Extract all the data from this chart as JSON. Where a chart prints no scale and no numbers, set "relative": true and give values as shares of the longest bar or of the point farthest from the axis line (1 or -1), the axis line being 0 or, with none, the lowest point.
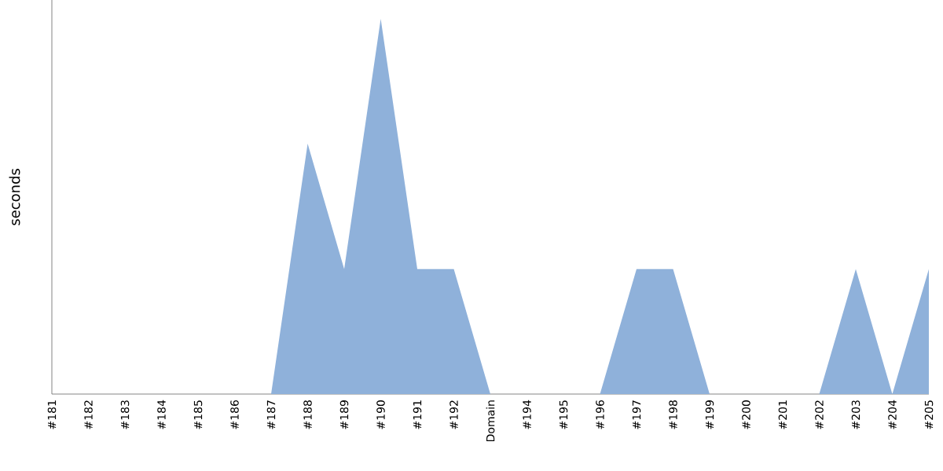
{
  "chart_data": {
    "type": "area",
    "ylabel": "seconds",
    "relative": true,
    "color": "#8fb1da",
    "categories": [
      "#181",
      "#182",
      "#183",
      "#184",
      "#185",
      "#186",
      "#187",
      "#188",
      "#189",
      "#190",
      "#191",
      "#192",
      "Domain",
      "#194",
      "#195",
      "#196",
      "#197",
      "#198",
      "#199",
      "#200",
      "#201",
      "#202",
      "#203",
      "#204",
      "#205"
    ],
    "values": [
      0,
      0,
      0,
      0,
      0,
      0,
      0,
      0.667,
      0.333,
      1,
      0.333,
      0.333,
      0,
      0,
      0,
      0,
      0.333,
      0.333,
      0,
      0,
      0,
      0,
      0.333,
      0,
      0.333
    ]
  }
}
